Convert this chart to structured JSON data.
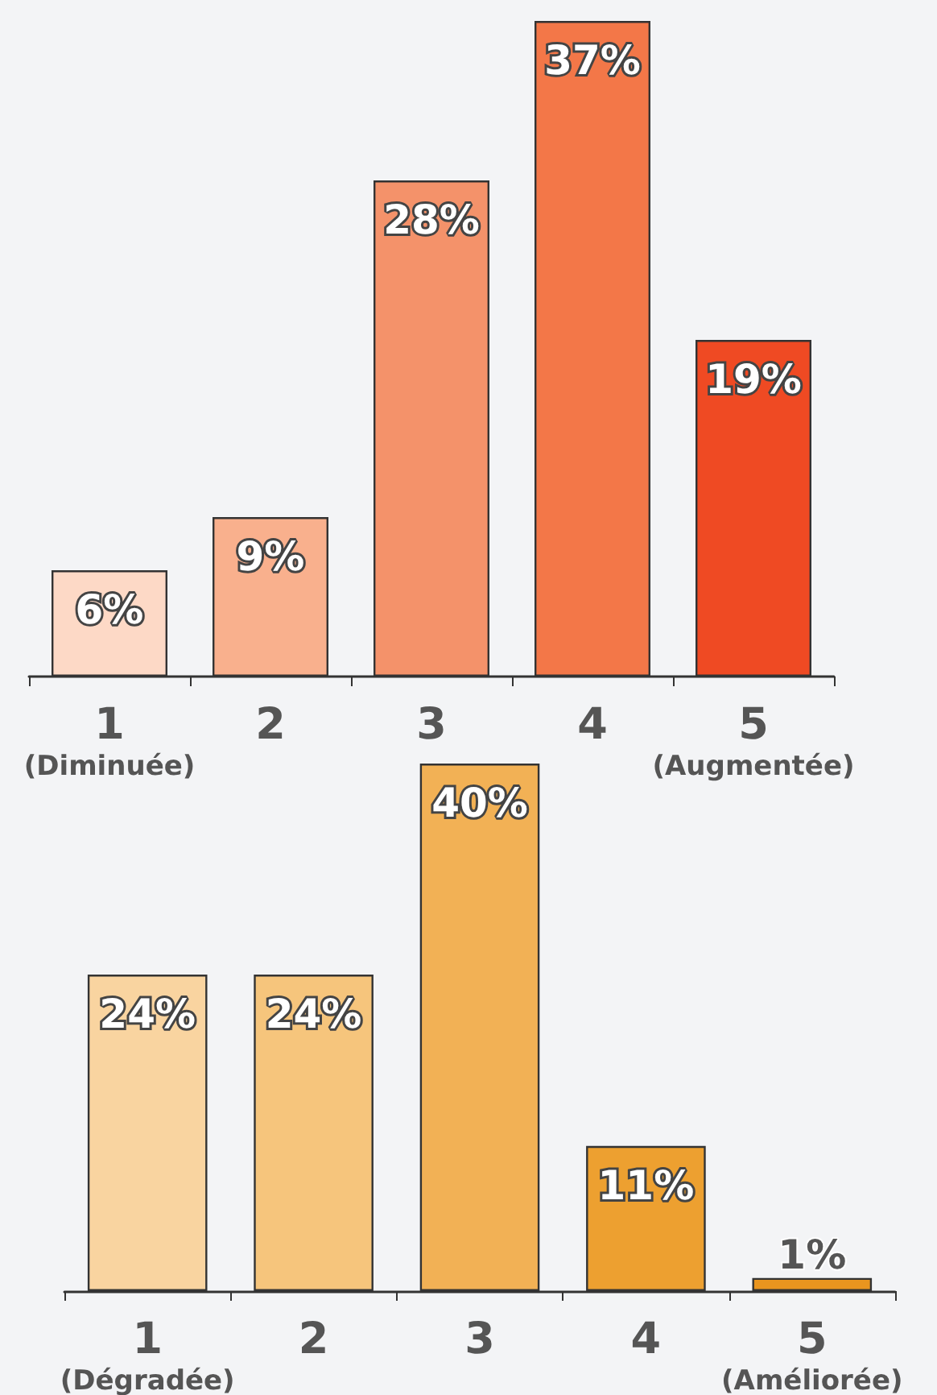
{
  "chart_data": [
    {
      "type": "bar",
      "categories": [
        "1\n(Diminuée)",
        "2",
        "3",
        "4",
        "5\n(Augmentée)"
      ],
      "values": [
        6,
        9,
        28,
        37,
        19
      ],
      "value_labels": [
        "6%",
        "9%",
        "28%",
        "37%",
        "19%"
      ],
      "colors": [
        "#fdd9c6",
        "#f9b08d",
        "#f4926a",
        "#f37748",
        "#ef4a23"
      ]
    },
    {
      "type": "bar",
      "categories": [
        "1\n(Dégradée)",
        "2",
        "3",
        "4",
        "5\n(Améliorée)"
      ],
      "values": [
        24,
        24,
        40,
        11,
        1
      ],
      "value_labels": [
        "24%",
        "24%",
        "40%",
        "11%",
        "1%"
      ],
      "colors": [
        "#f9d4a0",
        "#f6c57c",
        "#f2b155",
        "#eda030",
        "#e9951f"
      ]
    }
  ]
}
